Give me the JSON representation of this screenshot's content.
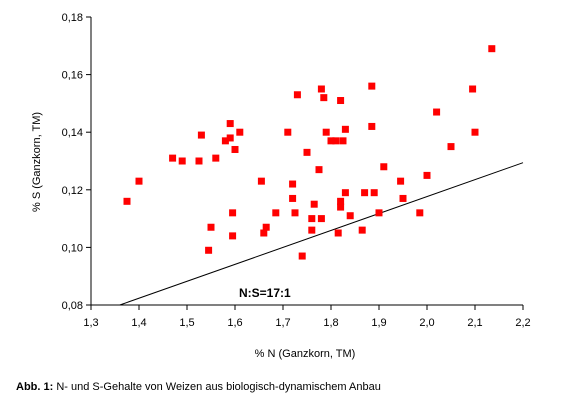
{
  "chart_data": {
    "type": "scatter",
    "xlabel": "% N (Ganzkorn, TM)",
    "ylabel": "% S (Ganzkorn, TM)",
    "xlim": [
      1.3,
      2.2
    ],
    "ylim": [
      0.08,
      0.18
    ],
    "x_ticks": [
      "1,3",
      "1,4",
      "1,5",
      "1,6",
      "1,7",
      "1,8",
      "1,9",
      "2,0",
      "2,1",
      "2,2"
    ],
    "y_ticks": [
      "0,08",
      "0,10",
      "0,12",
      "0,14",
      "0,16",
      "0,18"
    ],
    "grid": false,
    "marker_color": "#ff0000",
    "line_color": "#000000",
    "annotation": "N:S=17:1",
    "ratio_line": {
      "ratio": 17
    },
    "points": [
      [
        1.375,
        0.116
      ],
      [
        1.4,
        0.123
      ],
      [
        1.47,
        0.131
      ],
      [
        1.49,
        0.13
      ],
      [
        1.525,
        0.13
      ],
      [
        1.53,
        0.139
      ],
      [
        1.545,
        0.099
      ],
      [
        1.55,
        0.107
      ],
      [
        1.56,
        0.131
      ],
      [
        1.58,
        0.137
      ],
      [
        1.59,
        0.143
      ],
      [
        1.59,
        0.138
      ],
      [
        1.595,
        0.112
      ],
      [
        1.595,
        0.104
      ],
      [
        1.6,
        0.134
      ],
      [
        1.61,
        0.14
      ],
      [
        1.655,
        0.123
      ],
      [
        1.66,
        0.105
      ],
      [
        1.665,
        0.107
      ],
      [
        1.685,
        0.112
      ],
      [
        1.71,
        0.14
      ],
      [
        1.72,
        0.122
      ],
      [
        1.72,
        0.117
      ],
      [
        1.725,
        0.112
      ],
      [
        1.73,
        0.153
      ],
      [
        1.74,
        0.097
      ],
      [
        1.75,
        0.133
      ],
      [
        1.76,
        0.106
      ],
      [
        1.76,
        0.11
      ],
      [
        1.765,
        0.115
      ],
      [
        1.775,
        0.127
      ],
      [
        1.78,
        0.11
      ],
      [
        1.78,
        0.155
      ],
      [
        1.785,
        0.152
      ],
      [
        1.79,
        0.14
      ],
      [
        1.8,
        0.137
      ],
      [
        1.81,
        0.137
      ],
      [
        1.815,
        0.105
      ],
      [
        1.82,
        0.116
      ],
      [
        1.82,
        0.114
      ],
      [
        1.82,
        0.151
      ],
      [
        1.825,
        0.137
      ],
      [
        1.83,
        0.141
      ],
      [
        1.83,
        0.119
      ],
      [
        1.84,
        0.111
      ],
      [
        1.865,
        0.106
      ],
      [
        1.87,
        0.119
      ],
      [
        1.885,
        0.156
      ],
      [
        1.885,
        0.142
      ],
      [
        1.89,
        0.119
      ],
      [
        1.9,
        0.112
      ],
      [
        1.91,
        0.128
      ],
      [
        1.945,
        0.123
      ],
      [
        1.95,
        0.117
      ],
      [
        1.985,
        0.112
      ],
      [
        2.0,
        0.125
      ],
      [
        2.02,
        0.147
      ],
      [
        2.05,
        0.135
      ],
      [
        2.095,
        0.155
      ],
      [
        2.1,
        0.14
      ],
      [
        2.135,
        0.169
      ]
    ]
  },
  "caption": {
    "label": "Abb. 1:",
    "text": " N- und S-Gehalte von Weizen aus biologisch-dynamischem Anbau"
  }
}
